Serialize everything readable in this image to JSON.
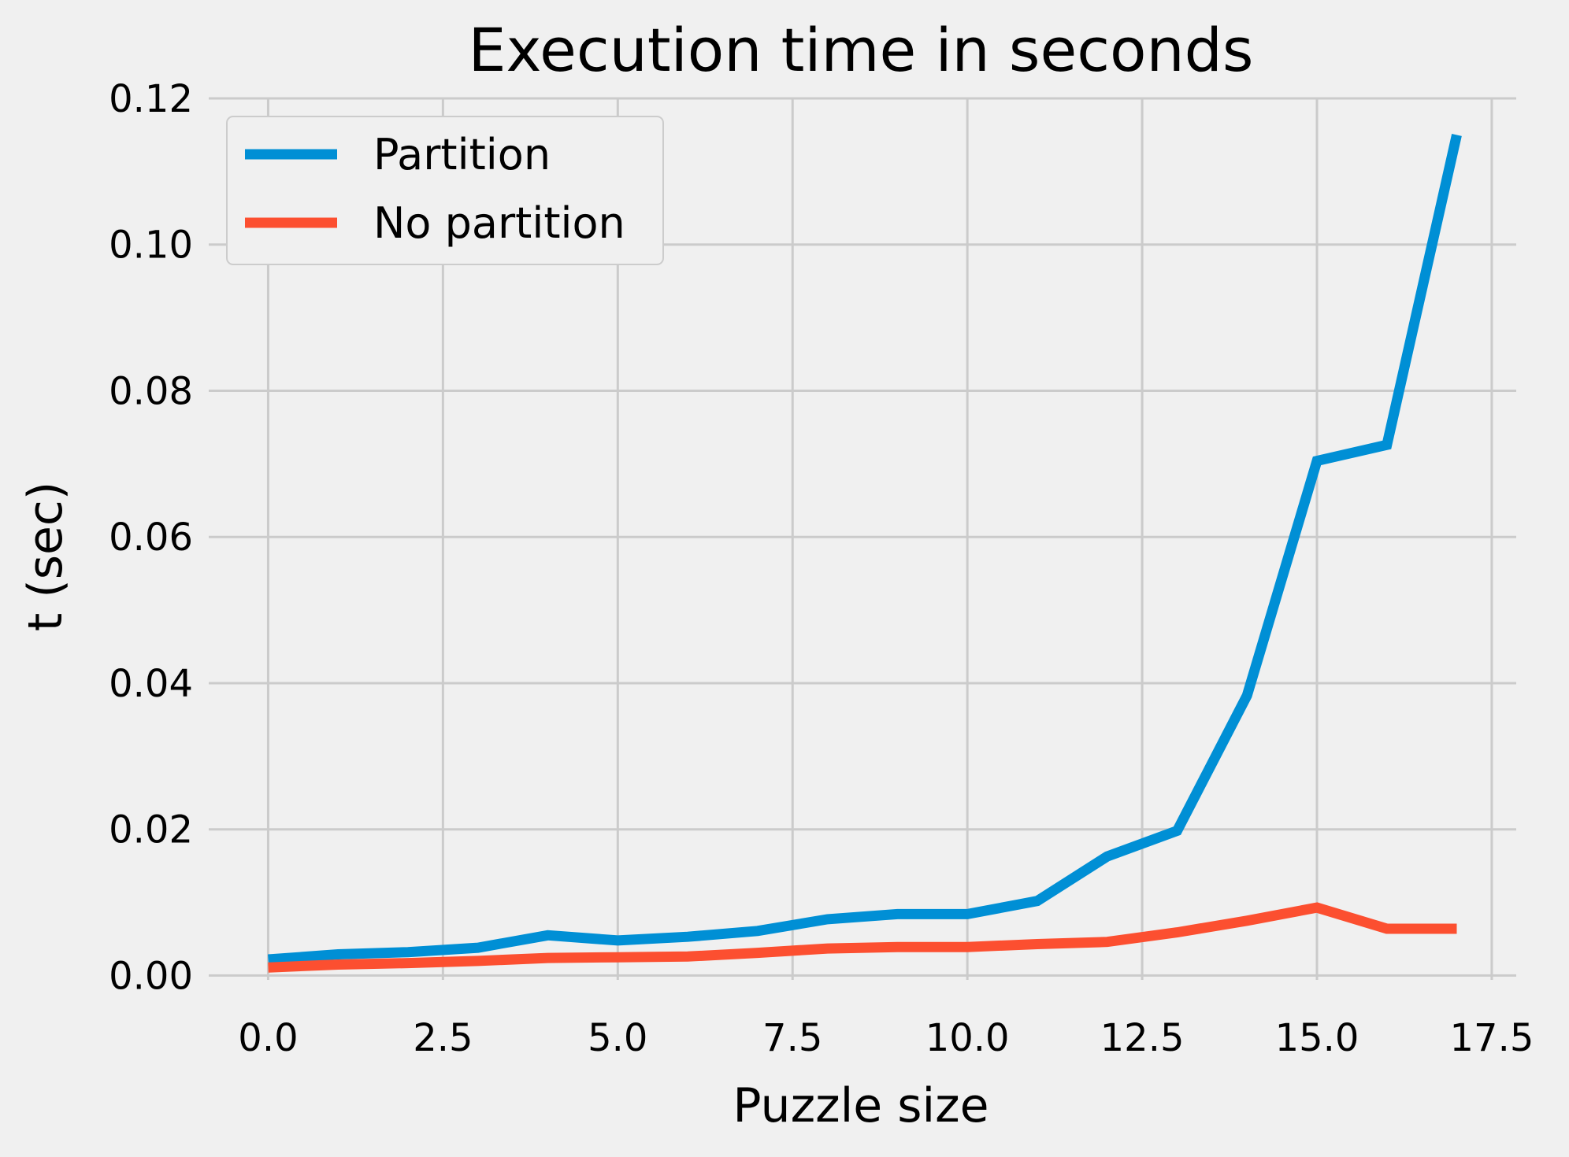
{
  "chart_data": {
    "type": "line",
    "title": "Execution time in seconds",
    "xlabel": "Puzzle size",
    "ylabel": "t (sec)",
    "xlim": [
      -0.85,
      17.85
    ],
    "ylim": [
      -0.0006,
      0.12
    ],
    "xticks": [
      0.0,
      2.5,
      5.0,
      7.5,
      10.0,
      12.5,
      15.0,
      17.5
    ],
    "xtick_labels": [
      "0.0",
      "2.5",
      "5.0",
      "7.5",
      "10.0",
      "12.5",
      "15.0",
      "17.5"
    ],
    "yticks": [
      0.0,
      0.02,
      0.04,
      0.06,
      0.08,
      0.1,
      0.12
    ],
    "ytick_labels": [
      "0.00",
      "0.02",
      "0.04",
      "0.06",
      "0.08",
      "0.10",
      "0.12"
    ],
    "grid": true,
    "legend": "top-left",
    "x": [
      0,
      1,
      2,
      3,
      4,
      5,
      6,
      7,
      8,
      9,
      10,
      11,
      12,
      13,
      14,
      15,
      16,
      17
    ],
    "series": [
      {
        "name": "Partition",
        "color": "#008fd5",
        "values": [
          0.0022,
          0.0029,
          0.0032,
          0.0038,
          0.0055,
          0.0048,
          0.0053,
          0.0061,
          0.0077,
          0.0084,
          0.0084,
          0.0102,
          0.0163,
          0.0198,
          0.0383,
          0.0704,
          0.0726,
          0.115
        ]
      },
      {
        "name": "No partition",
        "color": "#fc4f30",
        "values": [
          0.0011,
          0.0015,
          0.0017,
          0.002,
          0.0024,
          0.0025,
          0.0026,
          0.0031,
          0.0037,
          0.0039,
          0.0039,
          0.0043,
          0.0046,
          0.0059,
          0.0075,
          0.0093,
          0.0064,
          0.0064
        ]
      }
    ]
  }
}
